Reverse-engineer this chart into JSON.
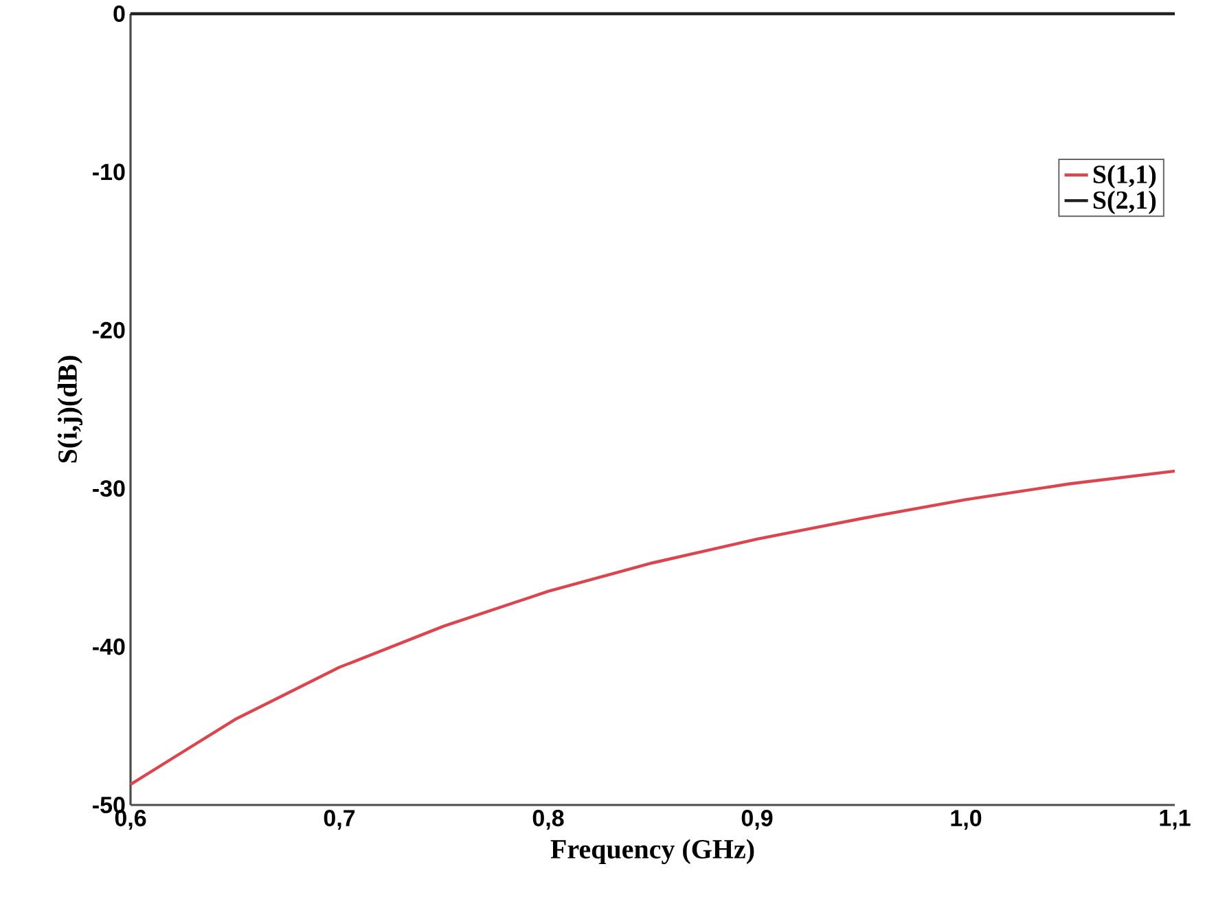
{
  "chart_data": {
    "type": "line",
    "xlabel": "Frequency (GHz)",
    "ylabel": "S(i,j)(dB)",
    "x": [
      0.6,
      0.65,
      0.7,
      0.75,
      0.8,
      0.85,
      0.9,
      0.95,
      1.0,
      1.05,
      1.1
    ],
    "series": [
      {
        "name": "S(1,1)",
        "color": "#d9464f",
        "values": [
          -48.7,
          -44.6,
          -41.3,
          -38.7,
          -36.5,
          -34.7,
          -33.2,
          -31.9,
          -30.7,
          -29.7,
          -28.9
        ]
      },
      {
        "name": "S(2,1)",
        "color": "#222222",
        "values": [
          0,
          0,
          0,
          0,
          0,
          0,
          0,
          0,
          0,
          0,
          0
        ]
      }
    ],
    "xlim": [
      0.6,
      1.1
    ],
    "ylim": [
      -50,
      0
    ],
    "xticks": [
      {
        "value": 0.6,
        "label": "0,6"
      },
      {
        "value": 0.7,
        "label": "0,7"
      },
      {
        "value": 0.8,
        "label": "0,8"
      },
      {
        "value": 0.9,
        "label": "0,9"
      },
      {
        "value": 1.0,
        "label": "1,0"
      },
      {
        "value": 1.1,
        "label": "1,1"
      }
    ],
    "yticks": [
      -50,
      -40,
      -30,
      -20,
      -10,
      0
    ],
    "grid": false,
    "legend": "right",
    "marker": "none",
    "line_style": "solid"
  }
}
